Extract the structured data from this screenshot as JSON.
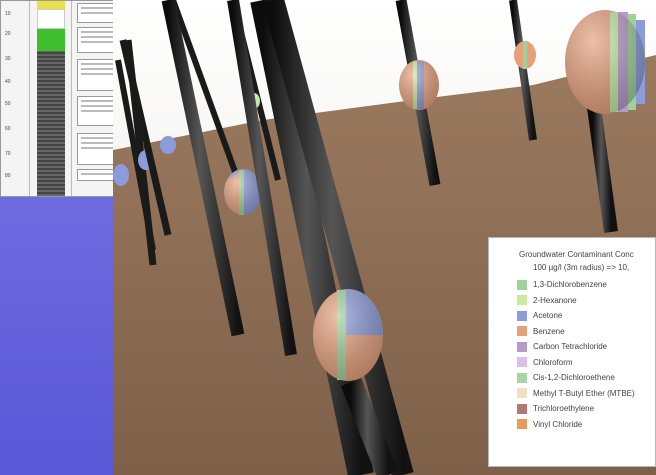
{
  "legend": {
    "title": "Groundwater Contaminant Conc",
    "subtitle": "100 µg/l (3m radius) => 10,",
    "items": [
      {
        "label": "1,3-Dichlorobenzene",
        "color": "#9fd19a"
      },
      {
        "label": "2-Hexanone",
        "color": "#c6eba0"
      },
      {
        "label": "Acetone",
        "color": "#8c9bd9"
      },
      {
        "label": "Benzene",
        "color": "#e7a07c"
      },
      {
        "label": "Carbon Tetrachloride",
        "color": "#b89ac9"
      },
      {
        "label": "Chloroform",
        "color": "#d8c0e8"
      },
      {
        "label": "Cis-1,2-Dichloroethene",
        "color": "#a9d3a6"
      },
      {
        "label": "Methyl T-Butyl Ether (MTBE)",
        "color": "#f1dfbf"
      },
      {
        "label": "Trichloroethylene",
        "color": "#b5776e"
      },
      {
        "label": "Vinyl Chloride",
        "color": "#ea9a58"
      }
    ]
  },
  "colors": {
    "ground": "#8a6a50",
    "sky": "#f0eee9",
    "background": "#6f6be0",
    "pipe": "#1c1c1c"
  }
}
